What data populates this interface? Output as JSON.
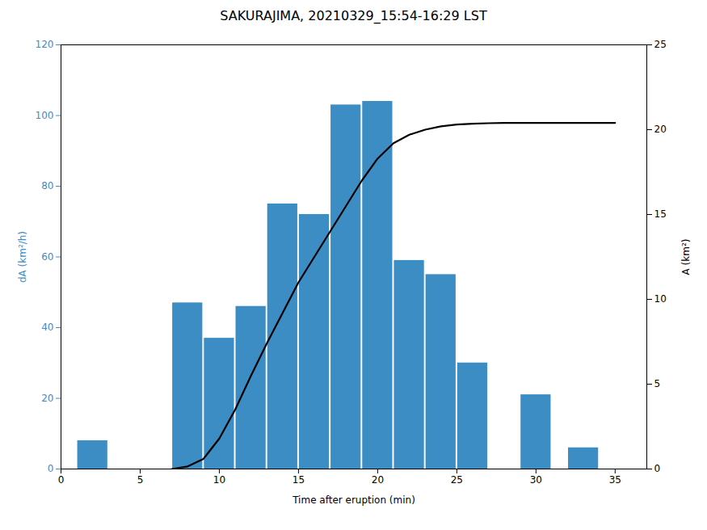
{
  "chart_data": {
    "type": "bar",
    "title": "SAKURAJIMA, 20210329_15:54-16:29 LST",
    "xlabel": "Time after eruption (min)",
    "ylabel": "dA (km²/h)",
    "y2label": "A (km²)",
    "xlim": [
      0,
      37
    ],
    "xticks": [
      0,
      5,
      10,
      15,
      20,
      25,
      30,
      35
    ],
    "ylim": [
      0,
      120
    ],
    "yticks": [
      0,
      20,
      40,
      60,
      80,
      100,
      120
    ],
    "y2lim": [
      0,
      25
    ],
    "y2ticks": [
      0,
      5,
      10,
      15,
      20,
      25
    ],
    "grid": false,
    "series": [
      {
        "type": "bar",
        "color": "#3C8DC4",
        "x": [
          2,
          8,
          10,
          12,
          14,
          16,
          18,
          20,
          22,
          24,
          26,
          30,
          33
        ],
        "values": [
          8,
          47,
          37,
          46,
          75,
          72,
          103,
          104,
          59,
          55,
          30,
          21,
          6
        ]
      },
      {
        "type": "line",
        "axis": "y2",
        "color": "#000000",
        "x": [
          7,
          8,
          9,
          10,
          11,
          12,
          13,
          14,
          15,
          16,
          17,
          18,
          19,
          20,
          21,
          22,
          23,
          24,
          25,
          26,
          27,
          28,
          30,
          33,
          35
        ],
        "values": [
          0,
          0.15,
          0.6,
          1.8,
          3.5,
          5.5,
          7.4,
          9.2,
          11.0,
          12.5,
          14.0,
          15.5,
          17.0,
          18.3,
          19.2,
          19.7,
          20.0,
          20.2,
          20.3,
          20.35,
          20.38,
          20.4,
          20.4,
          20.4,
          20.4
        ]
      }
    ]
  }
}
